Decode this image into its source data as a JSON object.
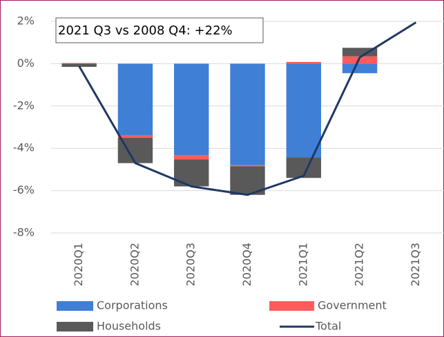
{
  "chart_data": {
    "type": "bar",
    "stacked": true,
    "annotation": "2021 Q3 vs 2008 Q4: +22%",
    "categories": [
      "2020Q1",
      "2020Q2",
      "2020Q3",
      "2020Q4",
      "2021Q1",
      "2021Q2",
      "2021Q3"
    ],
    "series": [
      {
        "name": "Corporations",
        "color": "#3f7fd6",
        "values": [
          0,
          -3.4,
          -4.33,
          -4.8,
          -4.43,
          -0.45,
          null
        ]
      },
      {
        "name": "Government",
        "color": "#ff5b5b",
        "values": [
          0.03,
          -0.1,
          -0.2,
          -0.05,
          0.08,
          0.35,
          null
        ]
      },
      {
        "name": "Households",
        "color": "#595959",
        "values": [
          -0.15,
          -1.2,
          -1.27,
          -1.35,
          -0.97,
          0.4,
          null
        ]
      },
      {
        "name": "Total",
        "type": "line",
        "color": "#1f3864",
        "values": [
          -0.12,
          -4.7,
          -5.8,
          -6.2,
          -5.3,
          0.3,
          1.95
        ]
      }
    ],
    "ylim": [
      -8,
      2
    ],
    "yticks": [
      {
        "value": -8,
        "label": "-8%"
      },
      {
        "value": -6,
        "label": "-6%"
      },
      {
        "value": -4,
        "label": "-4%"
      },
      {
        "value": -2,
        "label": "-2%"
      },
      {
        "value": 0,
        "label": "0%"
      },
      {
        "value": 2,
        "label": "2%"
      }
    ],
    "grid": true
  }
}
